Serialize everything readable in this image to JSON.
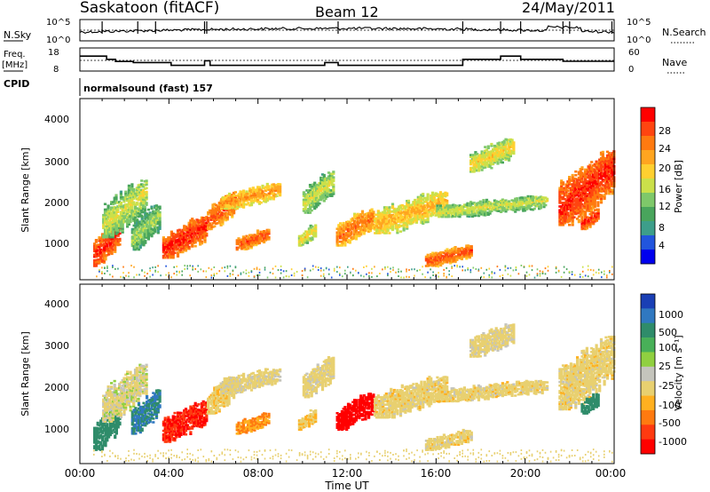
{
  "header": {
    "station": "Saskatoon (fitACF)",
    "beam": "Beam 12",
    "date": "24/May/2011"
  },
  "noise_panel": {
    "left_label": "N.Sky",
    "right_label": "N.Search",
    "left_ticks": [
      "10^5",
      "10^0"
    ],
    "right_ticks": [
      "10^5",
      "10^0"
    ]
  },
  "freq_panel": {
    "left_label_1": "Freq.",
    "left_label_2": "[MHz]",
    "left_ticks": [
      "18",
      "8"
    ],
    "right_label": "Nave",
    "right_ticks": [
      "60",
      "0"
    ],
    "freq_series": [
      [
        0,
        16.4
      ],
      [
        1.2,
        16.4
      ],
      [
        1.2,
        14.6
      ],
      [
        1.6,
        14.6
      ],
      [
        1.6,
        13.4
      ],
      [
        2.4,
        13.4
      ],
      [
        2.4,
        12.8
      ],
      [
        4.1,
        12.8
      ],
      [
        4.1,
        11.2
      ],
      [
        5.6,
        11.2
      ],
      [
        5.6,
        13.8
      ],
      [
        5.85,
        13.8
      ],
      [
        5.85,
        11.2
      ],
      [
        11.0,
        11.2
      ],
      [
        11.0,
        12.8
      ],
      [
        11.6,
        12.8
      ],
      [
        11.6,
        11.2
      ],
      [
        17.2,
        11.2
      ],
      [
        17.2,
        14.6
      ],
      [
        18.9,
        14.6
      ],
      [
        18.9,
        16.4
      ],
      [
        19.8,
        16.4
      ],
      [
        19.8,
        14.6
      ],
      [
        21.7,
        14.6
      ],
      [
        21.7,
        13.5
      ],
      [
        24,
        13.5
      ]
    ]
  },
  "cpid": {
    "label": "CPID",
    "program": "normalsound (fast) 157"
  },
  "power_panel": {
    "ylabel": "Slant Range [km]",
    "yticks": [
      "4000",
      "3000",
      "2000",
      "1000"
    ],
    "colorbar_label": "Power [dB]",
    "colorbar_ticks": [
      "28",
      "24",
      "20",
      "16",
      "12",
      "8",
      "4"
    ],
    "colorbar_colors": [
      "#0000ee",
      "#2255dd",
      "#3d9e8a",
      "#49a55c",
      "#7ec86a",
      "#cbe04a",
      "#ffd030",
      "#ffa520",
      "#ff7a10",
      "#ff4510",
      "#ff0000"
    ]
  },
  "velocity_panel": {
    "ylabel": "Slant Range [km]",
    "yticks": [
      "4000",
      "3000",
      "2000",
      "1000"
    ],
    "colorbar_label": "Velocity [m s⁻¹]",
    "colorbar_ticks": [
      "1000",
      "500",
      "100",
      "25",
      "-25",
      "-100",
      "-500",
      "-1000"
    ],
    "colorbar_colors": [
      "#1a3fb5",
      "#3078c0",
      "#2f8c6a",
      "#48b058",
      "#90d040",
      "#c4c4bc",
      "#e8d070",
      "#ffb020",
      "#ff7a10",
      "#ff3a10",
      "#ff0000"
    ]
  },
  "xaxis": {
    "label": "Time UT",
    "ticks": [
      "00:00",
      "04:00",
      "08:00",
      "12:00",
      "16:00",
      "20:00",
      "00:00"
    ]
  },
  "chart_data": {
    "type": "heatmap",
    "title": "Saskatoon (fitACF)",
    "x_range_hours": [
      0,
      24
    ],
    "y_range_km": [
      180,
      4600
    ],
    "echo_regions": [
      {
        "t0": 0.6,
        "t1": 1.8,
        "r0": 500,
        "r1": 1600,
        "power": 24,
        "velocity": 300
      },
      {
        "t0": 1.0,
        "t1": 3.0,
        "r0": 1200,
        "r1": 2600,
        "power": 12,
        "velocity": 20
      },
      {
        "t0": 2.3,
        "t1": 3.6,
        "r0": 900,
        "r1": 2000,
        "power": 10,
        "velocity": 500
      },
      {
        "t0": 3.7,
        "t1": 5.7,
        "r0": 700,
        "r1": 1700,
        "power": 24,
        "velocity": -300
      },
      {
        "t0": 5.7,
        "t1": 7.0,
        "r0": 1400,
        "r1": 2300,
        "power": 22,
        "velocity": -10
      },
      {
        "t0": 7.0,
        "t1": 8.5,
        "r0": 900,
        "r1": 1400,
        "power": 22,
        "velocity": -60
      },
      {
        "t0": 6.3,
        "t1": 9.0,
        "r0": 1900,
        "r1": 2500,
        "power": 18,
        "velocity": 10
      },
      {
        "t0": 9.8,
        "t1": 10.6,
        "r0": 1000,
        "r1": 1500,
        "power": 14,
        "velocity": -20
      },
      {
        "t0": 10.0,
        "t1": 11.4,
        "r0": 1800,
        "r1": 2800,
        "power": 12,
        "velocity": 5
      },
      {
        "t0": 11.5,
        "t1": 13.2,
        "r0": 1000,
        "r1": 1900,
        "power": 20,
        "velocity": -700
      },
      {
        "t0": 13.2,
        "t1": 16.5,
        "r0": 1300,
        "r1": 2300,
        "power": 16,
        "velocity": 0
      },
      {
        "t0": 15.5,
        "t1": 17.6,
        "r0": 500,
        "r1": 1000,
        "power": 22,
        "velocity": 0
      },
      {
        "t0": 16.0,
        "t1": 21.0,
        "r0": 1700,
        "r1": 2200,
        "power": 12,
        "velocity": 0
      },
      {
        "t0": 17.5,
        "t1": 19.5,
        "r0": 2800,
        "r1": 3600,
        "power": 14,
        "velocity": 10
      },
      {
        "t0": 21.5,
        "t1": 24.0,
        "r0": 1500,
        "r1": 3300,
        "power": 24,
        "velocity": 0
      },
      {
        "t0": 22.5,
        "t1": 23.3,
        "r0": 1400,
        "r1": 1900,
        "power": 24,
        "velocity": 400
      }
    ]
  }
}
